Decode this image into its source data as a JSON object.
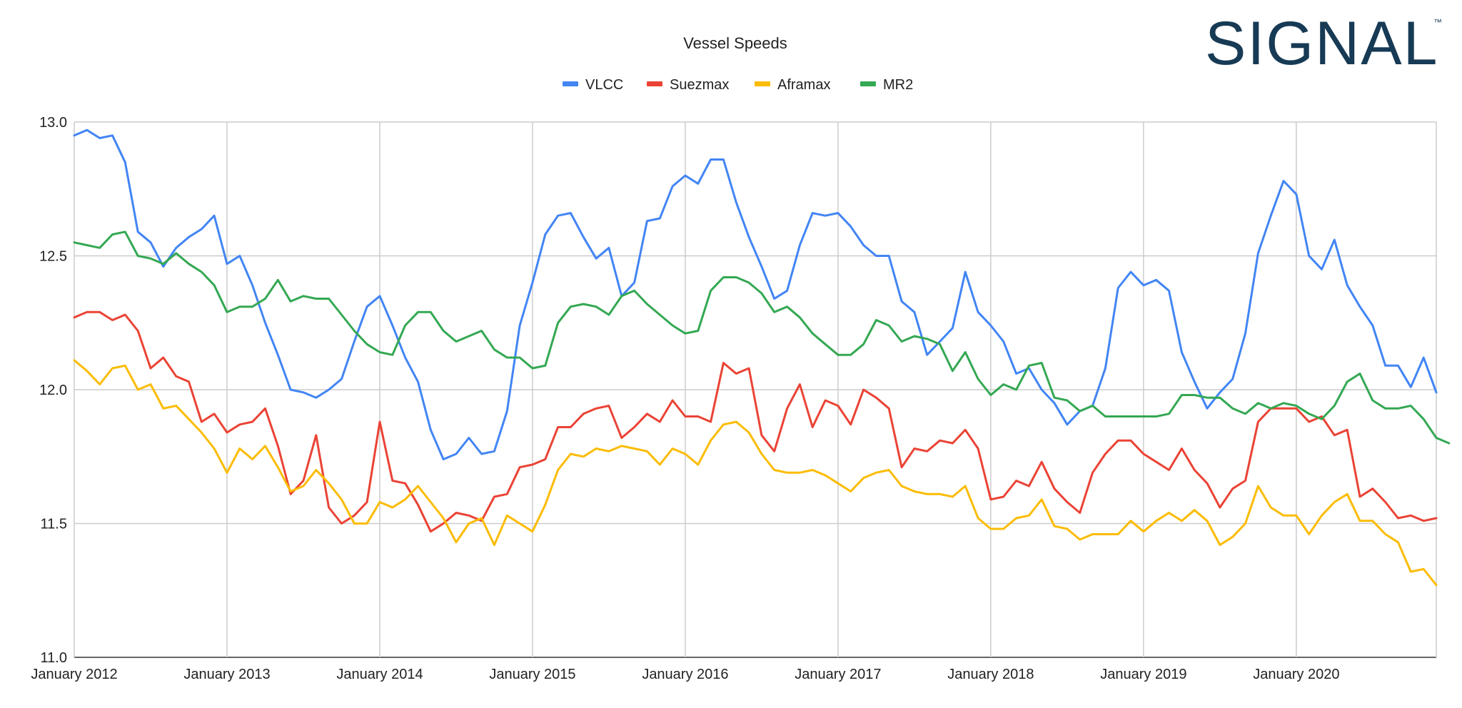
{
  "logo": {
    "text": "SIGNAL",
    "mark": "™",
    "color": "#173a55"
  },
  "chart_data": {
    "type": "line",
    "title": "Vessel Speeds",
    "xlabel": "",
    "ylabel": "",
    "ylim": [
      11.0,
      13.0
    ],
    "yticks": [
      11.0,
      11.5,
      12.0,
      12.5,
      13.0
    ],
    "ytick_labels": [
      "11.0",
      "11.5",
      "12.0",
      "12.5",
      "13.0"
    ],
    "x_start": "January 2012",
    "x_end": "December 2020",
    "xtick_labels": [
      "January 2012",
      "January 2013",
      "January 2014",
      "January 2015",
      "January 2016",
      "January 2017",
      "January 2018",
      "January 2019",
      "January 2020"
    ],
    "grid": true,
    "legend_position": "top",
    "series": [
      {
        "name": "VLCC",
        "color": "#4285f4",
        "values": [
          12.95,
          12.97,
          12.94,
          12.95,
          12.85,
          12.59,
          12.55,
          12.46,
          12.53,
          12.57,
          12.6,
          12.65,
          12.47,
          12.5,
          12.39,
          12.25,
          12.13,
          12.0,
          11.99,
          11.97,
          12.0,
          12.04,
          12.18,
          12.31,
          12.35,
          12.24,
          12.12,
          12.03,
          11.85,
          11.74,
          11.76,
          11.82,
          11.76,
          11.77,
          11.92,
          12.24,
          12.4,
          12.58,
          12.65,
          12.66,
          12.57,
          12.49,
          12.53,
          12.35,
          12.4,
          12.63,
          12.64,
          12.76,
          12.8,
          12.77,
          12.86,
          12.86,
          12.7,
          12.57,
          12.46,
          12.34,
          12.37,
          12.54,
          12.66,
          12.65,
          12.66,
          12.61,
          12.54,
          12.5,
          12.5,
          12.33,
          12.29,
          12.13,
          12.18,
          12.23,
          12.44,
          12.29,
          12.24,
          12.18,
          12.06,
          12.08,
          12.0,
          11.95,
          11.87,
          11.92,
          11.94,
          12.08,
          12.38,
          12.44,
          12.39,
          12.41,
          12.37,
          12.14,
          12.03,
          11.93,
          11.99,
          12.04,
          12.21,
          12.51,
          12.65,
          12.78,
          12.73,
          12.5,
          12.45,
          12.56,
          12.39,
          12.31,
          12.24,
          12.09,
          12.09,
          12.01,
          12.12,
          11.99
        ]
      },
      {
        "name": "Suezmax",
        "color": "#ea4335",
        "values": [
          12.27,
          12.29,
          12.29,
          12.26,
          12.28,
          12.22,
          12.08,
          12.12,
          12.05,
          12.03,
          11.88,
          11.91,
          11.84,
          11.87,
          11.88,
          11.93,
          11.79,
          11.61,
          11.66,
          11.83,
          11.56,
          11.5,
          11.53,
          11.58,
          11.88,
          11.66,
          11.65,
          11.57,
          11.47,
          11.5,
          11.54,
          11.53,
          11.51,
          11.6,
          11.61,
          11.71,
          11.72,
          11.74,
          11.86,
          11.86,
          11.91,
          11.93,
          11.94,
          11.82,
          11.86,
          11.91,
          11.88,
          11.96,
          11.9,
          11.9,
          11.88,
          12.1,
          12.06,
          12.08,
          11.83,
          11.77,
          11.93,
          12.02,
          11.86,
          11.96,
          11.94,
          11.87,
          12.0,
          11.97,
          11.93,
          11.71,
          11.78,
          11.77,
          11.81,
          11.8,
          11.85,
          11.78,
          11.59,
          11.6,
          11.66,
          11.64,
          11.73,
          11.63,
          11.58,
          11.54,
          11.69,
          11.76,
          11.81,
          11.81,
          11.76,
          11.73,
          11.7,
          11.78,
          11.7,
          11.65,
          11.56,
          11.63,
          11.66,
          11.88,
          11.93,
          11.93,
          11.93,
          11.88,
          11.9,
          11.83,
          11.85,
          11.6,
          11.63,
          11.58,
          11.52,
          11.53,
          11.51,
          11.52
        ]
      },
      {
        "name": "Aframax",
        "color": "#fbbc04",
        "values": [
          12.11,
          12.07,
          12.02,
          12.08,
          12.09,
          12.0,
          12.02,
          11.93,
          11.94,
          11.89,
          11.84,
          11.78,
          11.69,
          11.78,
          11.74,
          11.79,
          11.71,
          11.62,
          11.64,
          11.7,
          11.65,
          11.59,
          11.5,
          11.5,
          11.58,
          11.56,
          11.59,
          11.64,
          11.58,
          11.52,
          11.43,
          11.5,
          11.52,
          11.42,
          11.53,
          11.5,
          11.47,
          11.57,
          11.7,
          11.76,
          11.75,
          11.78,
          11.77,
          11.79,
          11.78,
          11.77,
          11.72,
          11.78,
          11.76,
          11.72,
          11.81,
          11.87,
          11.88,
          11.84,
          11.76,
          11.7,
          11.69,
          11.69,
          11.7,
          11.68,
          11.65,
          11.62,
          11.67,
          11.69,
          11.7,
          11.64,
          11.62,
          11.61,
          11.61,
          11.6,
          11.64,
          11.52,
          11.48,
          11.48,
          11.52,
          11.53,
          11.59,
          11.49,
          11.48,
          11.44,
          11.46,
          11.46,
          11.46,
          11.51,
          11.47,
          11.51,
          11.54,
          11.51,
          11.55,
          11.51,
          11.42,
          11.45,
          11.5,
          11.64,
          11.56,
          11.53,
          11.53,
          11.46,
          11.53,
          11.58,
          11.61,
          11.51,
          11.51,
          11.46,
          11.43,
          11.32,
          11.33,
          11.27
        ]
      },
      {
        "name": "MR2",
        "color": "#34a853",
        "values": [
          12.55,
          12.54,
          12.53,
          12.58,
          12.59,
          12.5,
          12.49,
          12.47,
          12.51,
          12.47,
          12.44,
          12.39,
          12.29,
          12.31,
          12.31,
          12.34,
          12.41,
          12.33,
          12.35,
          12.34,
          12.34,
          12.28,
          12.22,
          12.17,
          12.14,
          12.13,
          12.24,
          12.29,
          12.29,
          12.22,
          12.18,
          12.2,
          12.22,
          12.15,
          12.12,
          12.12,
          12.08,
          12.09,
          12.25,
          12.31,
          12.32,
          12.31,
          12.28,
          12.35,
          12.37,
          12.32,
          12.28,
          12.24,
          12.21,
          12.22,
          12.37,
          12.42,
          12.42,
          12.4,
          12.36,
          12.29,
          12.31,
          12.27,
          12.21,
          12.17,
          12.13,
          12.13,
          12.17,
          12.26,
          12.24,
          12.18,
          12.2,
          12.19,
          12.17,
          12.07,
          12.14,
          12.04,
          11.98,
          12.02,
          12.0,
          12.09,
          12.1,
          11.97,
          11.96,
          11.92,
          11.94,
          11.9,
          11.9,
          11.9,
          11.9,
          11.9,
          11.91,
          11.98,
          11.98,
          11.97,
          11.97,
          11.93,
          11.91,
          11.95,
          11.93,
          11.95,
          11.94,
          11.91,
          11.89,
          11.94,
          12.03,
          12.06,
          11.96,
          11.93,
          11.93,
          11.94,
          11.89,
          11.82,
          11.8
        ]
      }
    ]
  }
}
